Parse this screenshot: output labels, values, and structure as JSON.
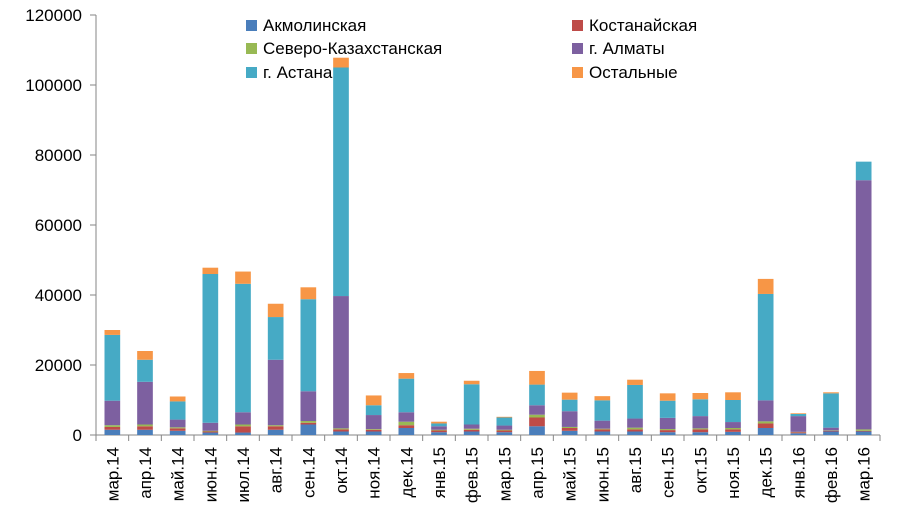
{
  "chart_data": {
    "type": "bar",
    "stacked": true,
    "title": "",
    "xlabel": "",
    "ylabel": "",
    "ylim": [
      0,
      120000
    ],
    "yticks": [
      0,
      20000,
      40000,
      60000,
      80000,
      100000,
      120000
    ],
    "grid": false,
    "legend_position": "top",
    "categories": [
      "мар.14",
      "апр.14",
      "май.14",
      "июн.14",
      "июл.14",
      "авг.14",
      "сен.14",
      "окт.14",
      "ноя.14",
      "дек.14",
      "янв.15",
      "фев.15",
      "мар.15",
      "апр.15",
      "май.15",
      "июн.15",
      "авг.15",
      "сен.15",
      "окт.15",
      "ноя.15",
      "дек.15",
      "янв.16",
      "фев.16",
      "мар.16"
    ],
    "series": [
      {
        "name": "Акмолинская",
        "color": "#4a7ebb",
        "values": [
          1500,
          1500,
          1200,
          700,
          700,
          1500,
          3000,
          1000,
          1000,
          2000,
          800,
          1000,
          800,
          2500,
          1200,
          1000,
          1000,
          800,
          800,
          900,
          2000,
          500,
          1000,
          1000
        ]
      },
      {
        "name": "Костанайская",
        "color": "#be4b48",
        "values": [
          800,
          1000,
          700,
          300,
          1800,
          1000,
          500,
          600,
          500,
          800,
          500,
          500,
          500,
          2500,
          800,
          600,
          600,
          600,
          800,
          700,
          1300,
          300,
          200,
          200
        ]
      },
      {
        "name": "Северо-Казахстанская",
        "color": "#98b954",
        "values": [
          500,
          500,
          300,
          200,
          500,
          300,
          500,
          300,
          200,
          1000,
          200,
          300,
          200,
          800,
          300,
          200,
          500,
          300,
          300,
          400,
          600,
          100,
          100,
          400
        ]
      },
      {
        "name": "г. Алматы",
        "color": "#7d60a0",
        "values": [
          7000,
          12200,
          2200,
          2300,
          3500,
          18700,
          8500,
          37800,
          4000,
          2700,
          1000,
          1200,
          1200,
          2700,
          4500,
          2300,
          2600,
          3200,
          3500,
          1700,
          6000,
          4500,
          800,
          71200
        ]
      },
      {
        "name": "г. Астана",
        "color": "#46aac5",
        "values": [
          18800,
          6300,
          5200,
          42500,
          36700,
          12200,
          26300,
          65300,
          2800,
          9600,
          800,
          11500,
          2300,
          5900,
          3300,
          5800,
          9600,
          4900,
          4800,
          6300,
          30400,
          600,
          9800,
          5300
        ]
      },
      {
        "name": "Остальные",
        "color": "#f79646",
        "values": [
          1400,
          2500,
          1400,
          1800,
          3500,
          3800,
          3400,
          2800,
          2800,
          1600,
          500,
          1000,
          200,
          3900,
          2000,
          1200,
          1500,
          2100,
          1800,
          2200,
          4300,
          200,
          300,
          0
        ]
      }
    ]
  }
}
